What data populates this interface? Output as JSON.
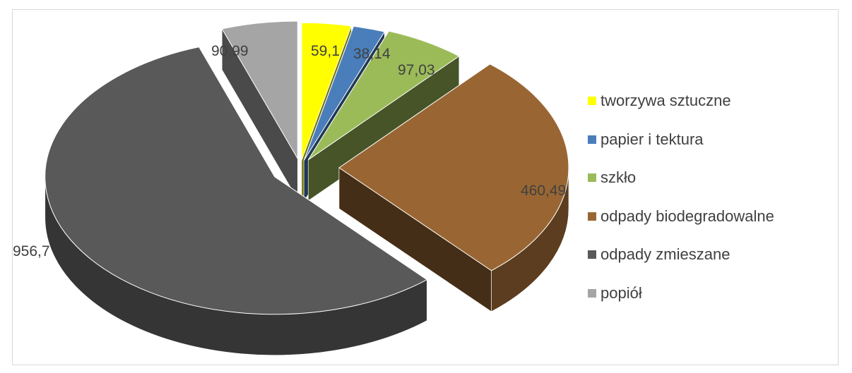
{
  "chart_data": {
    "type": "pie",
    "style": "3d-exploded",
    "title": "",
    "categories": [
      "tworzywa sztuczne",
      "papier i tektura",
      "szkło",
      "odpady biodegradowalne",
      "odpady zmieszane",
      "popiół"
    ],
    "values": [
      59.1,
      38.14,
      97.03,
      460.49,
      956.7,
      90.99
    ],
    "value_labels": [
      "59,1",
      "38,14",
      "97,03",
      "460,49",
      "956,7",
      "90,99"
    ],
    "colors": [
      "#ffff00",
      "#4a7ebb",
      "#9bbb59",
      "#996633",
      "#595959",
      "#a5a5a5"
    ],
    "legend_position": "right",
    "legend": [
      {
        "label": "tworzywa sztuczne",
        "color": "#ffff00"
      },
      {
        "label": "papier i tektura",
        "color": "#4a7ebb"
      },
      {
        "label": "szkło",
        "color": "#9bbb59"
      },
      {
        "label": "odpady biodegradowalne",
        "color": "#996633"
      },
      {
        "label": "odpady zmieszane",
        "color": "#595959"
      },
      {
        "label": "popiół",
        "color": "#a5a5a5"
      }
    ]
  }
}
